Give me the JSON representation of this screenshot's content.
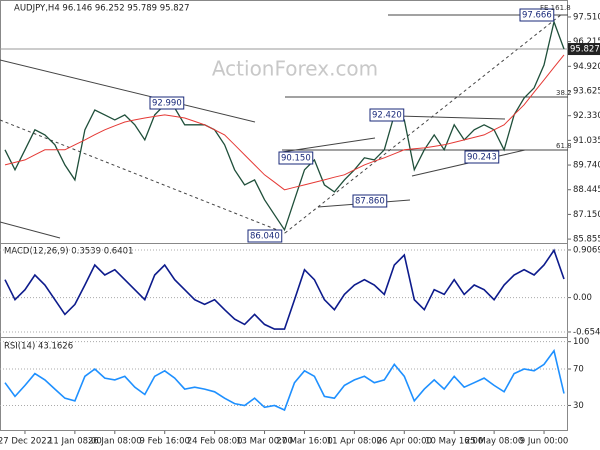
{
  "chart_data": {
    "type": "line",
    "title": "AUDJPY,H4  96.146 96.252 95.789 95.827",
    "watermark": "ActionForex.com",
    "categories": [
      null,
      null,
      "27 Dec 2022",
      null,
      null,
      null,
      null,
      "11 Jan 08:00",
      null,
      null,
      null,
      "26 Jan 08:00",
      null,
      null,
      null,
      null,
      "9 Feb 16:00",
      null,
      null,
      null,
      null,
      "24 Feb 08:00",
      null,
      null,
      null,
      null,
      "13 Mar 00:00",
      null,
      null,
      null,
      "27 Mar 16:00",
      null,
      null,
      null,
      null,
      "11 Apr 08:00",
      null,
      null,
      null,
      null,
      "26 Apr 00:00",
      null,
      null,
      null,
      null,
      "10 May 16:00",
      null,
      null,
      null,
      "25 May 08:00",
      null,
      null,
      null,
      null,
      "9 Jun 00:00",
      null,
      null
    ],
    "series": [
      {
        "color": "#1f4f3a",
        "values": [
          90.54,
          89.49,
          90.54,
          91.59,
          91.32,
          90.8,
          89.75,
          88.96,
          91.59,
          92.63,
          92.37,
          92.11,
          92.37,
          91.85,
          91.06,
          92.37,
          92.9,
          92.74,
          91.85,
          91.85,
          91.85,
          91.59,
          90.8,
          89.49,
          88.7,
          88.96,
          87.92,
          87.13,
          86.34,
          87.92,
          89.49,
          90.01,
          88.7,
          88.33,
          88.96,
          89.49,
          90.12,
          90.01,
          90.54,
          92.37,
          92.11,
          89.49,
          90.54,
          91.32,
          90.54,
          91.85,
          91.06,
          91.59,
          91.85,
          91.59,
          90.54,
          92.37,
          93.26,
          93.79,
          94.99,
          97.25,
          95.827
        ]
      },
      {
        "color": "#e53935",
        "values": [
          89.75,
          89.88,
          90.01,
          90.28,
          90.54,
          90.54,
          90.54,
          90.8,
          91.06,
          91.33,
          91.59,
          91.8,
          92.0,
          92.11,
          92.21,
          92.29,
          92.37,
          92.29,
          92.21,
          92.03,
          91.85,
          91.59,
          91.32,
          90.8,
          90.27,
          89.75,
          89.23,
          88.84,
          88.44,
          88.57,
          88.7,
          88.83,
          88.96,
          89.1,
          89.23,
          89.49,
          89.75,
          89.94,
          90.12,
          90.33,
          90.54,
          90.59,
          90.64,
          90.72,
          90.8,
          90.93,
          91.06,
          91.19,
          91.32,
          91.59,
          91.85,
          92.38,
          92.9,
          93.56,
          94.21,
          94.87,
          95.52
        ]
      }
    ],
    "ylim": [
      85.65,
      98.4
    ],
    "yticks": [
      {
        "value": 97.51,
        "label": "97.510"
      },
      96.215,
      {
        "value": 94.92,
        "label": "94.920"
      },
      93.625,
      {
        "value": 92.33,
        "label": "92.330"
      },
      91.035,
      {
        "value": 89.74,
        "label": "89.740"
      },
      88.445,
      {
        "value": 87.15,
        "label": "87.150"
      },
      85.855
    ],
    "last_price": 95.827,
    "annotations": [
      "92.990",
      "90.150",
      "87.860",
      "86.040",
      "92.420",
      "90.243",
      "97.666",
      "FE 161.8",
      "38.2",
      "61.8"
    ],
    "panels": [
      {
        "title": "MACD(12,26,9) 0.3539 0.6401",
        "ylim": [
          -0.75,
          1.02
        ],
        "yticks": [
          0.9069,
          {
            "value": 0,
            "label": "0.00"
          },
          -0.6545
        ],
        "grid": true,
        "series": [
          {
            "color": "#0d1b8c",
            "values": [
              0.34,
              -0.04,
              0.15,
              0.43,
              0.24,
              -0.04,
              -0.32,
              -0.13,
              0.24,
              0.62,
              0.43,
              0.53,
              0.34,
              0.15,
              -0.04,
              0.43,
              0.62,
              0.34,
              0.15,
              -0.04,
              -0.13,
              -0.04,
              -0.23,
              -0.41,
              -0.51,
              -0.32,
              -0.51,
              -0.6,
              -0.6,
              -0.04,
              0.53,
              0.34,
              -0.04,
              -0.23,
              0.06,
              0.24,
              0.34,
              0.24,
              0.06,
              0.62,
              0.81,
              -0.04,
              -0.23,
              0.15,
              0.06,
              0.34,
              0.06,
              0.24,
              0.15,
              -0.04,
              0.24,
              0.43,
              0.53,
              0.43,
              0.62,
              0.9,
              0.3539
            ]
          }
        ]
      },
      {
        "title": "RSI(14) 43.1626",
        "ylim": [
          2,
          104
        ],
        "yticks": [
          100,
          70,
          30
        ],
        "grid": true,
        "series": [
          {
            "color": "#1e90ff",
            "values": [
              55,
              40,
              52,
              65,
              58,
              48,
              38,
              35,
              62,
              70,
              60,
              58,
              62,
              50,
              42,
              62,
              68,
              60,
              48,
              50,
              48,
              45,
              38,
              32,
              30,
              38,
              28,
              30,
              25,
              55,
              68,
              62,
              40,
              38,
              52,
              58,
              62,
              55,
              58,
              75,
              62,
              35,
              48,
              58,
              48,
              62,
              50,
              55,
              60,
              52,
              45,
              65,
              70,
              68,
              75,
              90,
              43.1626
            ]
          }
        ]
      }
    ]
  }
}
